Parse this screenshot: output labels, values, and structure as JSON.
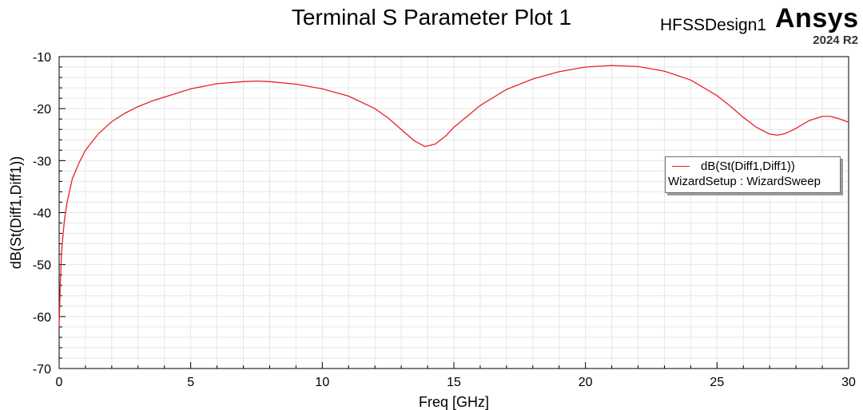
{
  "header": {
    "title": "Terminal S Parameter Plot 1",
    "design": "HFSSDesign1",
    "brand": "Ansys",
    "version": "2024 R2"
  },
  "legend": {
    "series_name": "dB(St(Diff1,Diff1))",
    "setup": "WizardSetup : WizardSweep"
  },
  "colors": {
    "series": "#e8202a",
    "grid": "#e6e6e6",
    "axis": "#000000"
  },
  "chart_data": {
    "type": "line",
    "title": "Terminal S Parameter Plot 1",
    "xlabel": "Freq [GHz]",
    "ylabel": "dB(St(Diff1,Diff1))",
    "xlim": [
      0,
      30
    ],
    "ylim": [
      -70,
      -10
    ],
    "xticks": [
      "0",
      "5",
      "10",
      "15",
      "20",
      "25",
      "30"
    ],
    "yticks": [
      "-10",
      "-20",
      "-30",
      "-40",
      "-50",
      "-60",
      "-70"
    ],
    "grid": true,
    "legend_position": "right",
    "series": [
      {
        "name": "dB(St(Diff1,Diff1))",
        "x": [
          0.0,
          0.05,
          0.1,
          0.2,
          0.3,
          0.5,
          0.75,
          1.0,
          1.5,
          2.0,
          2.5,
          3.0,
          3.5,
          4.0,
          5.0,
          6.0,
          7.0,
          7.5,
          8.0,
          9.0,
          10.0,
          11.0,
          12.0,
          12.5,
          13.0,
          13.5,
          13.9,
          14.3,
          14.7,
          15.0,
          16.0,
          17.0,
          18.0,
          19.0,
          20.0,
          21.0,
          22.0,
          23.0,
          24.0,
          25.0,
          25.5,
          26.0,
          26.5,
          27.0,
          27.3,
          27.6,
          28.0,
          28.5,
          29.0,
          29.3,
          29.6,
          30.0
        ],
        "y": [
          -62.0,
          -53.0,
          -47.0,
          -41.5,
          -38.0,
          -33.5,
          -30.5,
          -28.0,
          -24.8,
          -22.5,
          -20.9,
          -19.6,
          -18.6,
          -17.8,
          -16.2,
          -15.2,
          -14.8,
          -14.7,
          -14.8,
          -15.3,
          -16.2,
          -17.6,
          -20.0,
          -21.8,
          -24.0,
          -26.2,
          -27.3,
          -26.8,
          -25.2,
          -23.6,
          -19.4,
          -16.3,
          -14.3,
          -12.9,
          -12.0,
          -11.7,
          -11.9,
          -12.8,
          -14.5,
          -17.5,
          -19.5,
          -21.7,
          -23.6,
          -24.9,
          -25.1,
          -24.8,
          -23.8,
          -22.3,
          -21.5,
          -21.5,
          -21.9,
          -22.6
        ]
      }
    ]
  }
}
